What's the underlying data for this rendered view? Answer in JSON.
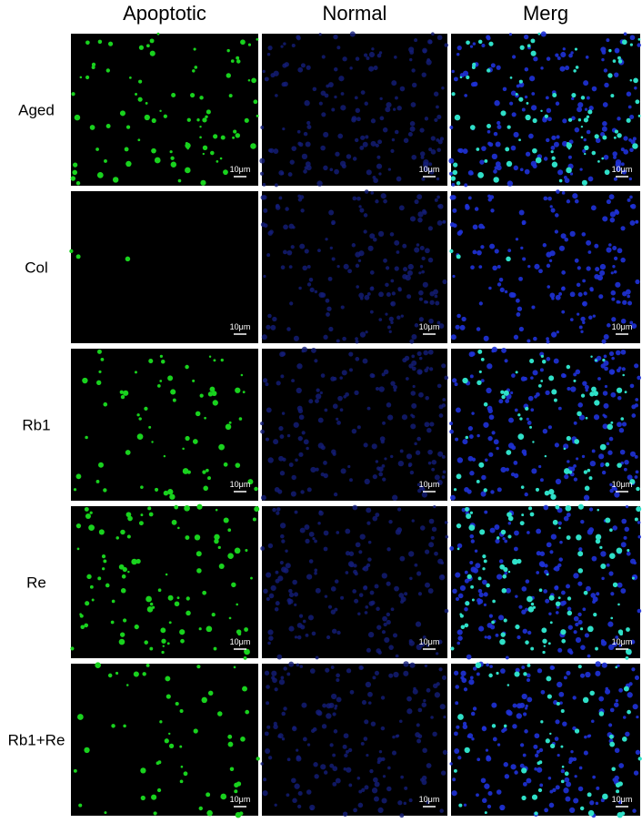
{
  "columns": [
    "Apoptotic",
    "Normal",
    "Merg"
  ],
  "rows": [
    "Aged",
    "Col",
    "Rb1",
    "Re",
    "Rb1+Re"
  ],
  "scale_bar": "10μm"
}
